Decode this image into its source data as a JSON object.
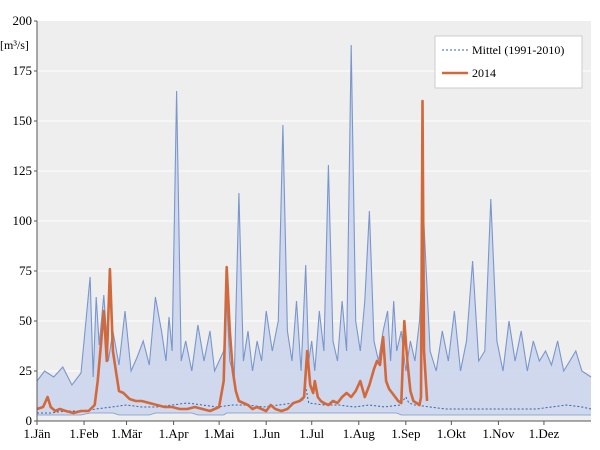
{
  "chart_data": {
    "type": "area",
    "y_unit": "[m³/s]",
    "ylim": [
      0,
      200
    ],
    "y_ticks": [
      0,
      25,
      50,
      75,
      100,
      125,
      150,
      175,
      200
    ],
    "x_ticks": [
      {
        "day": 1,
        "label": "1.Jän"
      },
      {
        "day": 32,
        "label": "1.Feb"
      },
      {
        "day": 60,
        "label": "1.Mär"
      },
      {
        "day": 91,
        "label": "1.Apr"
      },
      {
        "day": 121,
        "label": "1.Mai"
      },
      {
        "day": 152,
        "label": "1.Jun"
      },
      {
        "day": 182,
        "label": "1.Jul"
      },
      {
        "day": 213,
        "label": "1.Aug"
      },
      {
        "day": 244,
        "label": "1.Sep"
      },
      {
        "day": 274,
        "label": "1.Okt"
      },
      {
        "day": 305,
        "label": "1.Nov"
      },
      {
        "day": 335,
        "label": "1.Dez"
      }
    ],
    "xlim": [
      1,
      366
    ],
    "grid": "horizontal",
    "legend_position": "top-right",
    "colors": {
      "plot_bg": "#eeeeee",
      "band_fill": "#c9d3ec",
      "band_line": "#7a96cc",
      "mean_line": "#3c5fa8",
      "series_2014": "#d2693c",
      "grid": "#ffffff"
    },
    "band": {
      "name": "",
      "x": [
        1,
        6,
        12,
        18,
        24,
        30,
        36,
        38,
        40,
        42,
        45,
        48,
        51,
        55,
        59,
        63,
        67,
        71,
        75,
        79,
        83,
        86,
        88,
        90,
        93,
        96,
        99,
        103,
        107,
        111,
        115,
        118,
        121,
        124,
        126,
        128,
        131,
        134,
        137,
        140,
        143,
        146,
        149,
        152,
        156,
        160,
        163,
        166,
        169,
        172,
        175,
        178,
        180,
        182,
        184,
        187,
        190,
        193,
        196,
        199,
        202,
        205,
        208,
        211,
        214,
        217,
        220,
        223,
        226,
        229,
        232,
        234,
        236,
        238,
        241,
        244,
        247,
        250,
        253,
        256,
        260,
        264,
        268,
        272,
        276,
        280,
        284,
        288,
        292,
        296,
        300,
        304,
        308,
        312,
        316,
        320,
        324,
        328,
        332,
        336,
        340,
        344,
        348,
        352,
        356,
        360,
        366
      ],
      "upper": [
        20,
        25,
        22,
        27,
        18,
        24,
        72,
        22,
        62,
        38,
        63,
        30,
        45,
        28,
        55,
        25,
        32,
        40,
        28,
        62,
        45,
        30,
        52,
        35,
        165,
        30,
        40,
        25,
        48,
        30,
        45,
        25,
        30,
        35,
        60,
        30,
        22,
        114,
        30,
        45,
        25,
        40,
        30,
        55,
        35,
        50,
        148,
        45,
        30,
        60,
        25,
        78,
        30,
        40,
        25,
        55,
        35,
        128,
        40,
        30,
        60,
        35,
        188,
        50,
        35,
        60,
        105,
        40,
        30,
        45,
        55,
        30,
        60,
        35,
        45,
        25,
        40,
        30,
        50,
        98,
        35,
        25,
        45,
        30,
        55,
        25,
        40,
        80,
        30,
        35,
        111,
        40,
        25,
        50,
        30,
        45,
        25,
        40,
        30,
        35,
        28,
        40,
        25,
        30,
        35,
        25,
        22
      ],
      "lower": [
        3,
        3,
        3,
        3,
        3,
        3,
        4,
        4,
        4,
        4,
        4,
        4,
        4,
        3,
        3,
        3,
        3,
        3,
        3,
        4,
        4,
        4,
        4,
        4,
        4,
        4,
        4,
        4,
        3,
        3,
        3,
        3,
        3,
        3,
        4,
        4,
        4,
        4,
        4,
        4,
        4,
        4,
        4,
        4,
        4,
        4,
        4,
        4,
        4,
        4,
        4,
        4,
        4,
        4,
        4,
        4,
        4,
        4,
        4,
        4,
        4,
        4,
        4,
        4,
        4,
        4,
        4,
        4,
        4,
        4,
        4,
        4,
        4,
        4,
        3,
        3,
        3,
        3,
        3,
        3,
        3,
        3,
        3,
        3,
        3,
        3,
        3,
        3,
        3,
        3,
        3,
        3,
        3,
        3,
        3,
        3,
        3,
        3,
        3,
        3,
        3,
        3,
        3,
        3,
        3,
        3,
        3
      ]
    },
    "series": [
      {
        "name": "Mittel (1991-2010)",
        "x": [
          1,
          10,
          20,
          30,
          40,
          50,
          60,
          70,
          80,
          90,
          100,
          110,
          120,
          130,
          140,
          150,
          160,
          170,
          176,
          178,
          180,
          190,
          200,
          210,
          220,
          230,
          240,
          244,
          246,
          250,
          260,
          270,
          280,
          290,
          300,
          310,
          320,
          330,
          340,
          350,
          360,
          366
        ],
        "values": [
          4,
          4,
          5,
          5,
          6,
          7,
          8,
          7,
          7,
          8,
          9,
          8,
          7,
          8,
          8,
          7,
          8,
          9,
          10,
          17,
          9,
          8,
          8,
          7,
          8,
          7,
          8,
          12,
          9,
          8,
          7,
          6,
          6,
          6,
          6,
          6,
          6,
          6,
          7,
          8,
          7,
          6
        ]
      },
      {
        "name": "2014",
        "x": [
          1,
          5,
          8,
          10,
          13,
          16,
          20,
          25,
          30,
          35,
          39,
          41,
          43,
          45,
          47,
          49,
          51,
          53,
          55,
          58,
          62,
          66,
          70,
          75,
          80,
          85,
          90,
          95,
          100,
          105,
          110,
          115,
          118,
          121,
          124,
          126,
          128,
          130,
          132,
          134,
          137,
          140,
          143,
          146,
          149,
          152,
          155,
          158,
          162,
          166,
          170,
          174,
          177,
          179,
          181,
          183,
          184,
          186,
          188,
          190,
          193,
          196,
          199,
          202,
          205,
          208,
          211,
          214,
          217,
          220,
          223,
          225,
          227,
          229,
          231,
          233,
          235,
          237,
          239,
          241,
          243,
          245,
          247,
          249,
          251,
          253,
          254,
          255,
          256,
          258
        ],
        "values": [
          6,
          7,
          12,
          7,
          5,
          6,
          5,
          4,
          5,
          5,
          8,
          20,
          37,
          55,
          30,
          76,
          35,
          25,
          15,
          14,
          11,
          10,
          10,
          9,
          8,
          7,
          7,
          6,
          6,
          7,
          6,
          5,
          6,
          7,
          20,
          77,
          45,
          25,
          15,
          10,
          9,
          8,
          6,
          7,
          6,
          5,
          8,
          6,
          5,
          6,
          9,
          10,
          12,
          35,
          18,
          14,
          20,
          12,
          10,
          9,
          8,
          10,
          9,
          12,
          14,
          12,
          15,
          20,
          12,
          18,
          26,
          30,
          28,
          42,
          20,
          16,
          14,
          12,
          10,
          9,
          50,
          30,
          15,
          10,
          9,
          8,
          12,
          160,
          35,
          10
        ]
      }
    ]
  }
}
